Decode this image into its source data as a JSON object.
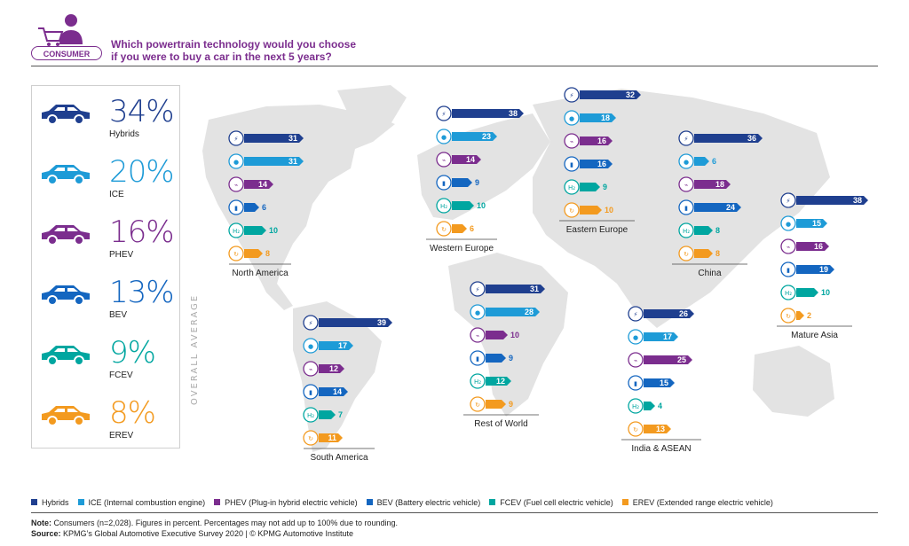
{
  "header": {
    "badge": "CONSUMER",
    "title_line1": "Which powertrain technology would you choose",
    "title_line2": "if you were to buy a car in the next 5 years?"
  },
  "colors": {
    "hybrids": "#1f3f8f",
    "ice": "#1e9bd7",
    "phev": "#7b2d8e",
    "bev": "#1466c0",
    "fcev": "#00a6a0",
    "erev": "#f39a1f",
    "map": "#e3e3e3"
  },
  "overall_average": {
    "label": "OVERALL AVERAGE",
    "items": [
      {
        "key": "hybrids",
        "pct": "34%",
        "label": "Hybrids",
        "icon": "hybrid-car-icon"
      },
      {
        "key": "ice",
        "pct": "20%",
        "label": "ICE",
        "icon": "ice-car-icon"
      },
      {
        "key": "phev",
        "pct": "16%",
        "label": "PHEV",
        "icon": "phev-car-icon"
      },
      {
        "key": "bev",
        "pct": "13%",
        "label": "BEV",
        "icon": "bev-car-icon"
      },
      {
        "key": "fcev",
        "pct": "9%",
        "label": "FCEV",
        "icon": "fcev-car-icon"
      },
      {
        "key": "erev",
        "pct": "8%",
        "label": "EREV",
        "icon": "erev-car-icon"
      }
    ]
  },
  "chart_data": {
    "type": "bar",
    "categories": [
      "Hybrids",
      "ICE",
      "PHEV",
      "BEV",
      "FCEV",
      "EREV"
    ],
    "regions": [
      {
        "name": "North America",
        "values": [
          31,
          31,
          14,
          6,
          10,
          8
        ]
      },
      {
        "name": "South America",
        "values": [
          39,
          17,
          12,
          14,
          7,
          11
        ]
      },
      {
        "name": "Western Europe",
        "values": [
          38,
          23,
          14,
          9,
          10,
          6
        ]
      },
      {
        "name": "Eastern Europe",
        "values": [
          32,
          18,
          16,
          16,
          9,
          10
        ]
      },
      {
        "name": "Rest of World",
        "values": [
          31,
          28,
          10,
          9,
          12,
          9
        ]
      },
      {
        "name": "India & ASEAN",
        "values": [
          26,
          17,
          25,
          15,
          4,
          13
        ]
      },
      {
        "name": "China",
        "values": [
          36,
          6,
          18,
          24,
          8,
          8
        ]
      },
      {
        "name": "Mature Asia",
        "values": [
          38,
          15,
          16,
          19,
          10,
          2
        ]
      }
    ]
  },
  "legend": [
    {
      "key": "hybrids",
      "label": "Hybrids"
    },
    {
      "key": "ice",
      "label": "ICE (Internal combustion engine)"
    },
    {
      "key": "phev",
      "label": "PHEV (Plug-in hybrid electric vehicle)"
    },
    {
      "key": "bev",
      "label": "BEV (Battery electric vehicle)"
    },
    {
      "key": "fcev",
      "label": "FCEV (Fuel cell electric vehicle)"
    },
    {
      "key": "erev",
      "label": "EREV (Extended range electric vehicle)"
    }
  ],
  "footer": {
    "note_label": "Note:",
    "note_text": " Consumers (n=2,028). Figures in percent. Percentages may not add up to 100% due to rounding.",
    "source_label": "Source:",
    "source_text": " KPMG’s Global Automotive Executive Survey 2020 | © KPMG Automotive Institute"
  }
}
